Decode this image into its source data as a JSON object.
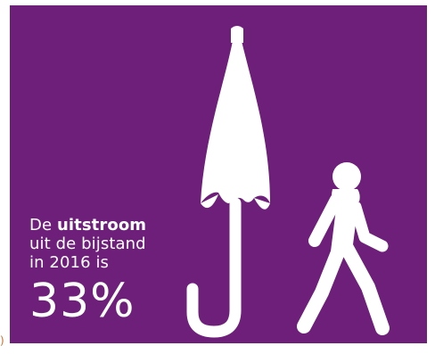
{
  "infographic": {
    "background_color": "#6d1f7a",
    "foreground_color": "#ffffff",
    "line1_prefix": "De ",
    "line1_emphasis": "uitstroom",
    "line2": "uit de bijstand",
    "line3": "in 2016 is",
    "percentage": "33%"
  },
  "edge_mark": ")",
  "icons": {
    "umbrella": "closed-umbrella-icon",
    "person": "walking-person-icon"
  }
}
